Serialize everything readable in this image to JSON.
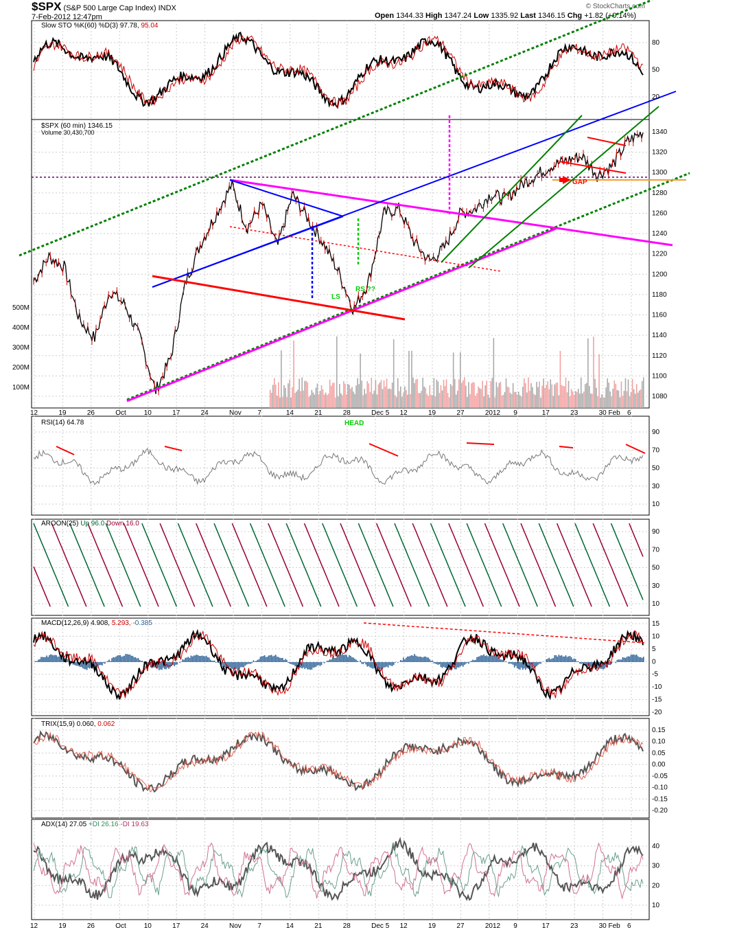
{
  "header": {
    "symbol": "$SPX",
    "name": "(S&P 500 Large Cap Index)",
    "exchange": "INDX",
    "date": "7-Feb-2012 12:47pm",
    "brand": "© StockCharts.com",
    "open_label": "Open",
    "open": "1344.33",
    "high_label": "High",
    "high": "1347.24",
    "low_label": "Low",
    "low": "1335.92",
    "last_label": "Last",
    "last": "1346.15",
    "chg_label": "Chg",
    "chg": "+1.82 (+0.14%)"
  },
  "panels": {
    "sto": {
      "label": "Slow STO %K(60) %D(3) 97.78,",
      "value2": "95.04",
      "ticks": [
        "80",
        "50",
        "20"
      ]
    },
    "price": {
      "label": "$SPX (60 min) 1346.15",
      "volume_label": "Volume 30,430,700",
      "ticks": [
        "1340",
        "1320",
        "1300",
        "1280",
        "1260",
        "1240",
        "1220",
        "1200",
        "1180",
        "1160",
        "1140",
        "1120",
        "1100",
        "1080"
      ],
      "volume_ticks": [
        "500M",
        "400M",
        "300M",
        "200M",
        "100M"
      ]
    },
    "rsi": {
      "label": "RSI(14) 64.78",
      "ticks": [
        "90",
        "70",
        "50",
        "30",
        "10"
      ]
    },
    "aroon": {
      "label": "AROON(25)",
      "up": "Up 96.0",
      "down": "Down 16.0",
      "ticks": [
        "90",
        "70",
        "50",
        "30",
        "10"
      ]
    },
    "macd": {
      "label": "MACD(12,26,9) 4.908,",
      "v2": "5.293,",
      "v3": "-0.385",
      "ticks": [
        "15",
        "10",
        "5",
        "0",
        "-5",
        "-10",
        "-15",
        "-20"
      ]
    },
    "trix": {
      "label": "TRIX(15,9) 0.060,",
      "v2": "0.062",
      "ticks": [
        "0.15",
        "0.10",
        "0.05",
        "0.00",
        "-0.05",
        "-0.10",
        "-0.15",
        "-0.20"
      ]
    },
    "adx": {
      "label": "ADX(14) 27.05",
      "pdi": "+DI 26.16",
      "mdi": "-DI 19.63",
      "ticks": [
        "40",
        "30",
        "20",
        "10"
      ]
    }
  },
  "xaxis": [
    "12",
    "19",
    "26",
    "Oct",
    "10",
    "17",
    "24",
    "Nov",
    "7",
    "14",
    "21",
    "28",
    "Dec 5",
    "12",
    "19",
    "27",
    "2012",
    "9",
    "17",
    "23",
    "30 Feb",
    "6"
  ],
  "annotations": {
    "gap": "GAP",
    "head": "HEAD",
    "ls": "LS",
    "rs": "RS ??"
  },
  "chart_data": {
    "type": "line",
    "title": "$SPX (S&P 500 Large Cap Index) INDX",
    "price_anchors": [
      1190,
      1215,
      1205,
      1150,
      1130,
      1180,
      1165,
      1130,
      1075,
      1110,
      1190,
      1230,
      1260,
      1290,
      1245,
      1270,
      1225,
      1280,
      1255,
      1230,
      1200,
      1160,
      1190,
      1260,
      1265,
      1230,
      1210,
      1225,
      1260,
      1265,
      1280,
      1275,
      1290,
      1300,
      1310,
      1315,
      1320,
      1300,
      1310,
      1335,
      1345
    ],
    "ylim": [
      1070,
      1350
    ],
    "colors": {
      "price": "#000000",
      "down": "#cc0000",
      "magenta": "#ff00ff",
      "blue": "#0000ff",
      "green": "#008000",
      "red": "#ff0000"
    }
  }
}
